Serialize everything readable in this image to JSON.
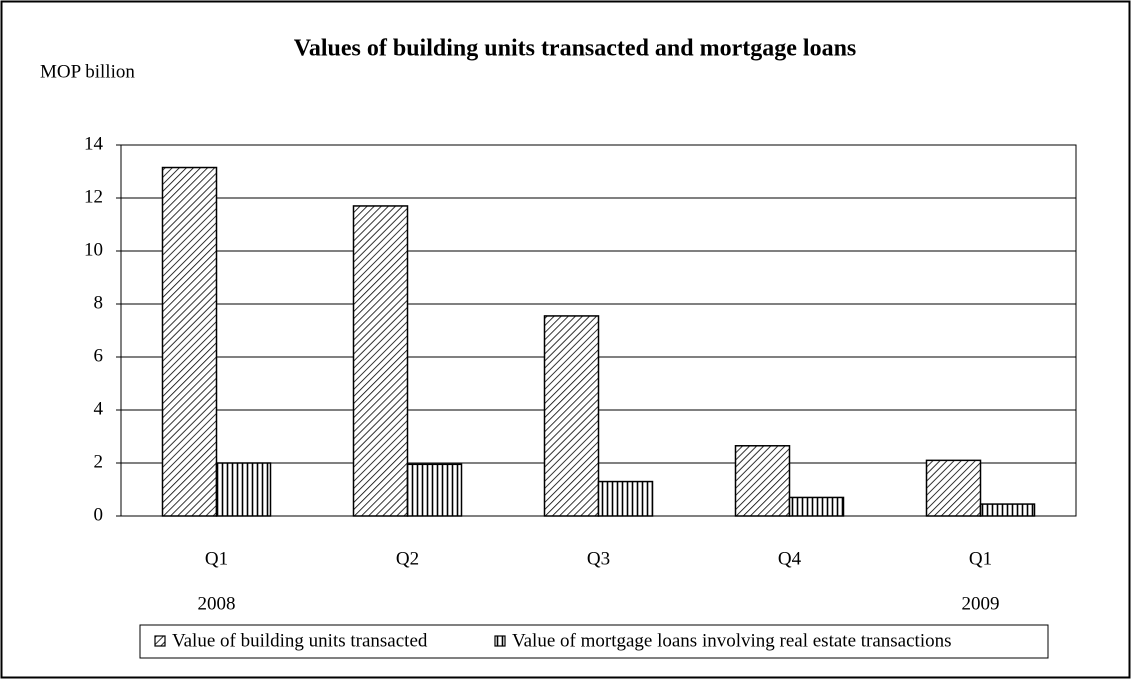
{
  "chart_data": {
    "type": "bar",
    "title": "Values of building units transacted and mortgage loans",
    "y_label": "MOP billion",
    "categories": [
      "Q1",
      "Q2",
      "Q3",
      "Q4",
      "Q1"
    ],
    "years": [
      "2008",
      null,
      null,
      null,
      "2009"
    ],
    "series": [
      {
        "name": "Value of building units transacted",
        "color": "#000000",
        "pattern": "diagonal",
        "values": [
          13.15,
          11.7,
          7.55,
          2.65,
          2.1
        ]
      },
      {
        "name": "Value of mortgage loans involving real estate transactions",
        "color": "#000000",
        "pattern": "vertical",
        "values": [
          2.0,
          1.95,
          1.3,
          0.7,
          0.45
        ]
      }
    ],
    "ylim": [
      0,
      14
    ],
    "yticks": [
      0,
      2,
      4,
      6,
      8,
      10,
      12,
      14
    ],
    "grid": true,
    "legend": "bottom"
  }
}
